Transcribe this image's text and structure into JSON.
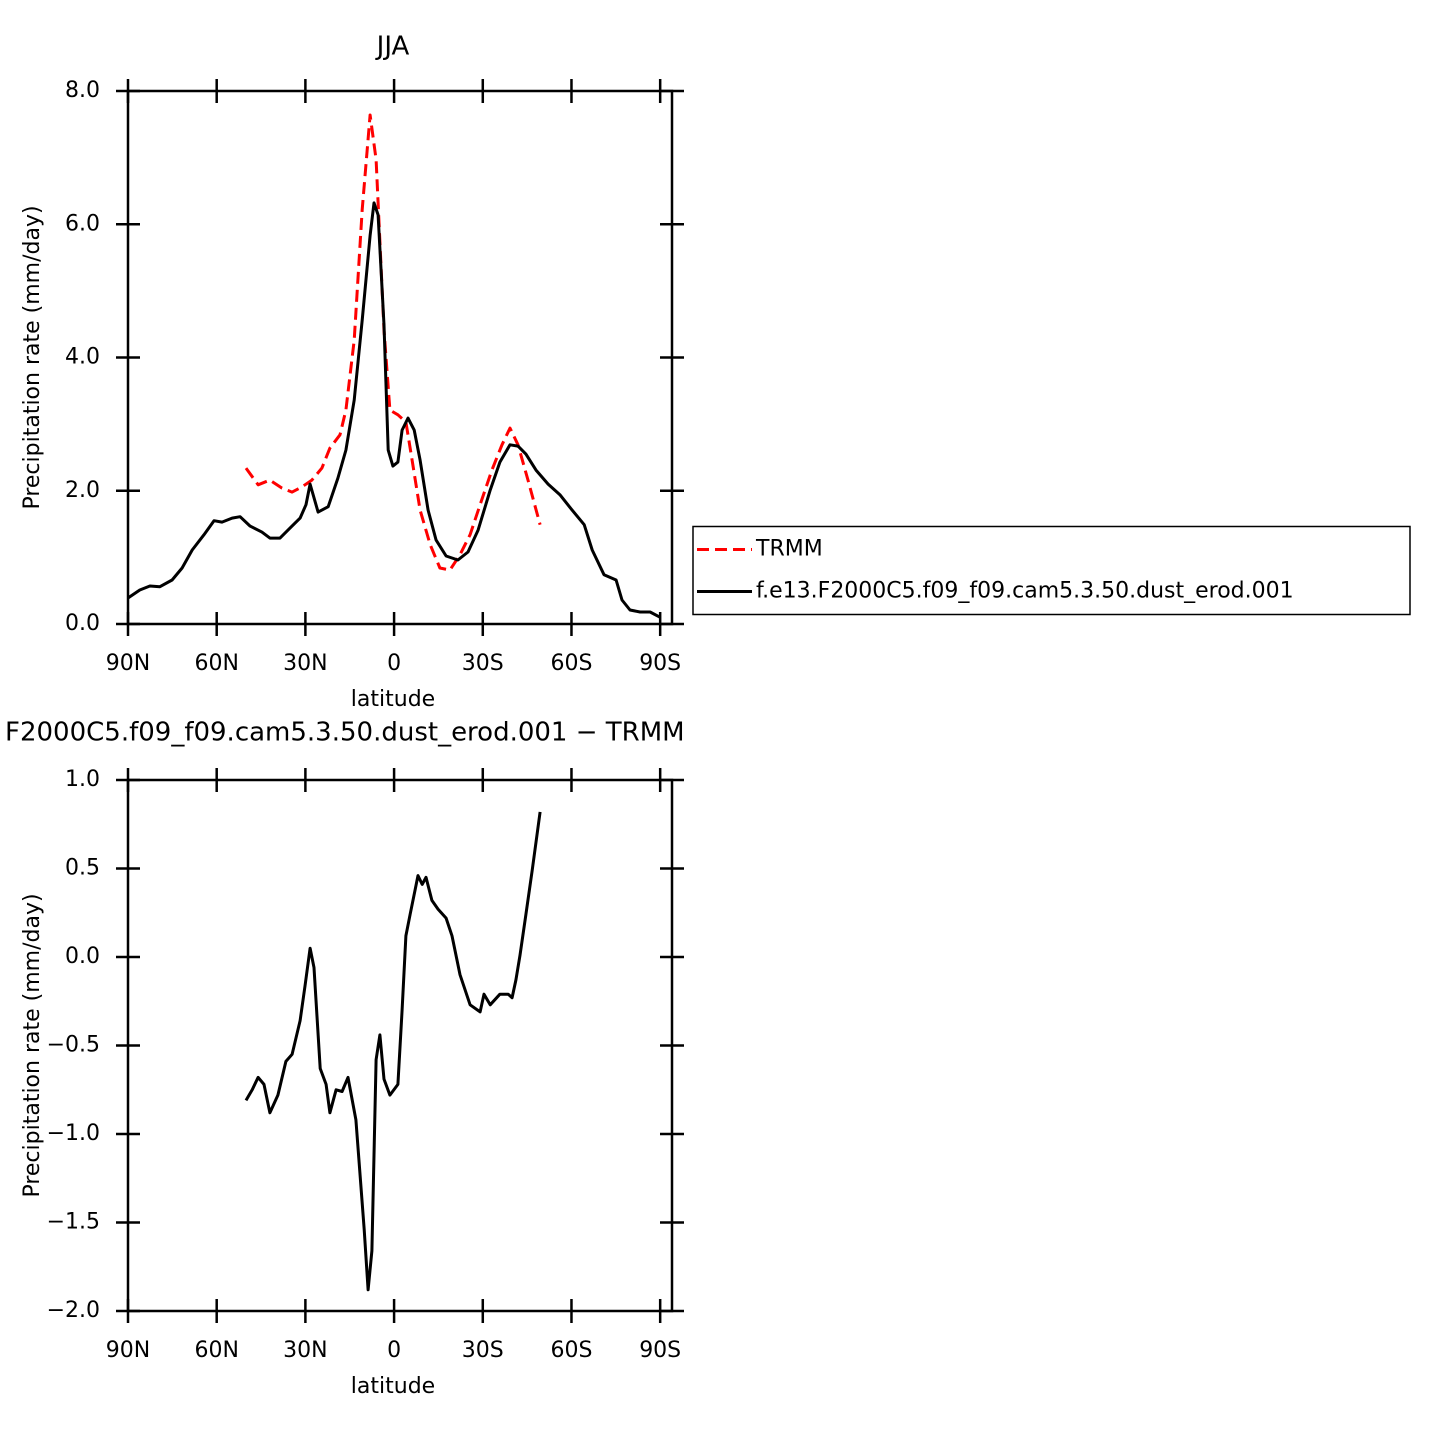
{
  "chart_data": [
    {
      "type": "line",
      "title": "JJA",
      "xlabel": "latitude",
      "ylabel": "Precipitation rate (mm/day)",
      "xlim": [
        90,
        -94
      ],
      "xticks": [
        {
          "value": 90,
          "label": "90N"
        },
        {
          "value": 60,
          "label": "60N"
        },
        {
          "value": 30,
          "label": "30N"
        },
        0,
        {
          "value": -30,
          "label": "30S"
        },
        {
          "value": -60,
          "label": "60S"
        },
        {
          "value": -90,
          "label": "90S"
        }
      ],
      "ylim": [
        0,
        8
      ],
      "yticks": [
        {
          "value": 0,
          "label": "0.0"
        },
        {
          "value": 2,
          "label": "2.0"
        },
        {
          "value": 4,
          "label": "4.0"
        },
        {
          "value": 6,
          "label": "6.0"
        },
        {
          "value": 8,
          "label": "8.0"
        }
      ],
      "legend": "right",
      "series": [
        {
          "name": "TRMM",
          "color": "#ff0000",
          "style": "dashed",
          "x": [
            50.1,
            46.0,
            42.0,
            37.9,
            34.5,
            31.1,
            27.8,
            24.4,
            21.7,
            18.3,
            16.3,
            13.5,
            10.8,
            8.1,
            6.1,
            3.4,
            1.4,
            -1.3,
            -4.0,
            -6.1,
            -8.8,
            -12.2,
            -15.5,
            -18.9,
            -22.3,
            -25.7,
            -29.1,
            -33.1,
            -36.5,
            -39.2,
            -41.9,
            -45.3,
            -49.4
          ],
          "values": [
            2.34,
            2.09,
            2.16,
            2.04,
            1.98,
            2.06,
            2.16,
            2.34,
            2.64,
            2.84,
            3.21,
            4.26,
            6.22,
            7.64,
            6.97,
            4.41,
            3.21,
            3.14,
            3.03,
            2.46,
            1.71,
            1.19,
            0.84,
            0.81,
            1.04,
            1.34,
            1.79,
            2.31,
            2.69,
            2.94,
            2.69,
            2.16,
            1.49
          ]
        },
        {
          "name": "f.e13.F2000C5.f09_f09.cam5.3.50.dust_erod.001",
          "color": "#000000",
          "style": "solid",
          "x": [
            90,
            86,
            82.6,
            79.2,
            75.1,
            71.7,
            68.3,
            64.3,
            60.9,
            58.2,
            54.8,
            52.1,
            48.7,
            44.7,
            42.0,
            38.6,
            35.2,
            31.8,
            29.8,
            28.4,
            25.7,
            22.3,
            19.0,
            16.3,
            13.5,
            10.8,
            8.1,
            6.8,
            5.4,
            3.4,
            2.0,
            0.4,
            -1.3,
            -2.7,
            -4.7,
            -6.8,
            -8.8,
            -11.5,
            -14.2,
            -17.6,
            -21.6,
            -25.0,
            -28.4,
            -32.5,
            -35.8,
            -39.2,
            -41.9,
            -44.6,
            -48.0,
            -52.1,
            -56.1,
            -60.2,
            -64.3,
            -67.0,
            -71.0,
            -75.1,
            -77.1,
            -79.8,
            -83.2,
            -86.6,
            -90
          ],
          "values": [
            0.39,
            0.51,
            0.57,
            0.56,
            0.66,
            0.84,
            1.11,
            1.34,
            1.55,
            1.53,
            1.59,
            1.61,
            1.47,
            1.38,
            1.29,
            1.29,
            1.44,
            1.59,
            1.79,
            2.1,
            1.68,
            1.76,
            2.19,
            2.61,
            3.36,
            4.56,
            5.83,
            6.32,
            6.14,
            4.49,
            2.61,
            2.37,
            2.43,
            2.91,
            3.09,
            2.91,
            2.46,
            1.71,
            1.26,
            1.02,
            0.96,
            1.08,
            1.41,
            2.01,
            2.43,
            2.69,
            2.67,
            2.55,
            2.31,
            2.1,
            1.94,
            1.71,
            1.49,
            1.11,
            0.74,
            0.66,
            0.36,
            0.21,
            0.18,
            0.18,
            0.1
          ]
        }
      ]
    },
    {
      "type": "line",
      "title": "F2000C5.f09_f09.cam5.3.50.dust_erod.001 − TRMM",
      "xlabel": "latitude",
      "ylabel": "Precipitation rate (mm/day)",
      "xlim": [
        90,
        -94
      ],
      "xticks": [
        {
          "value": 90,
          "label": "90N"
        },
        {
          "value": 60,
          "label": "60N"
        },
        {
          "value": 30,
          "label": "30N"
        },
        0,
        {
          "value": -30,
          "label": "30S"
        },
        {
          "value": -60,
          "label": "60S"
        },
        {
          "value": -90,
          "label": "90S"
        }
      ],
      "ylim": [
        -2,
        1
      ],
      "yticks": [
        {
          "value": -2,
          "label": "−2.0"
        },
        {
          "value": -1.5,
          "label": "−1.5"
        },
        {
          "value": -1,
          "label": "−1.0"
        },
        {
          "value": -0.5,
          "label": "−0.5"
        },
        {
          "value": 0,
          "label": "0.0"
        },
        0.5,
        {
          "value": 1,
          "label": "1.0"
        }
      ],
      "series": [
        {
          "color": "#000000",
          "style": "solid",
          "x": [
            50.1,
            48,
            46.0,
            44.0,
            42,
            39.3,
            36.6,
            34.5,
            31.8,
            30.1,
            28.4,
            27.1,
            25.0,
            23.0,
            21.7,
            19.6,
            17.6,
            15.6,
            12.9,
            10.1,
            8.8,
            7.5,
            6.1,
            4.8,
            3.4,
            1.4,
            -1.3,
            -2.7,
            -4.0,
            -5.4,
            -8.1,
            -9.5,
            -10.8,
            -12.8,
            -14.9,
            -17.6,
            -19.6,
            -22.3,
            -25.7,
            -29.1,
            -30.4,
            -32.5,
            -35.8,
            -38.6,
            -39.9,
            -41.2,
            -42.6,
            -44.6,
            -46.7,
            -49.4
          ],
          "values": [
            -0.81,
            -0.75,
            -0.68,
            -0.72,
            -0.88,
            -0.78,
            -0.59,
            -0.55,
            -0.36,
            -0.16,
            0.05,
            -0.06,
            -0.63,
            -0.72,
            -0.88,
            -0.75,
            -0.76,
            -0.68,
            -0.92,
            -1.54,
            -1.88,
            -1.66,
            -0.58,
            -0.44,
            -0.69,
            -0.78,
            -0.72,
            -0.3,
            0.12,
            0.24,
            0.46,
            0.41,
            0.45,
            0.32,
            0.27,
            0.22,
            0.12,
            -0.1,
            -0.27,
            -0.31,
            -0.21,
            -0.27,
            -0.21,
            -0.21,
            -0.23,
            -0.13,
            0.01,
            0.24,
            0.49,
            0.82
          ]
        }
      ]
    }
  ]
}
